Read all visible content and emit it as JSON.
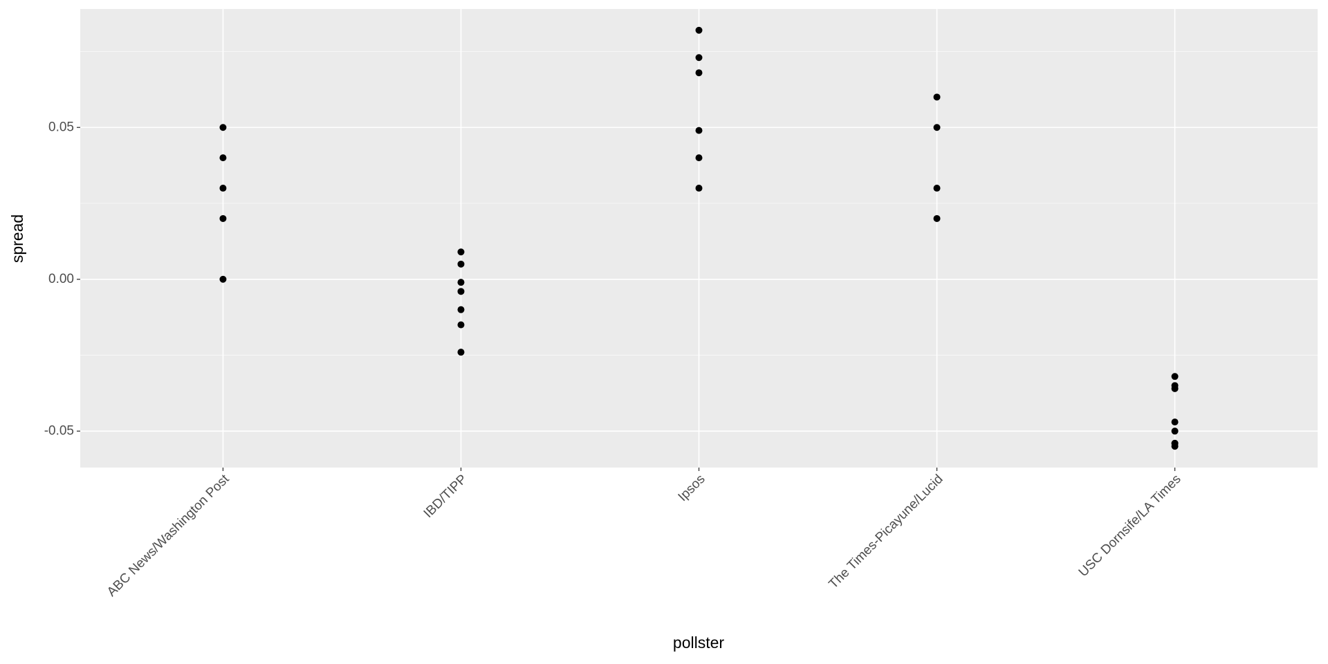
{
  "chart_data": {
    "type": "strip",
    "x_label": "pollster",
    "y_label": "spread",
    "groups": [
      {
        "name": "ABC News/Washington Post",
        "values": [
          0.05,
          0.04,
          0.03,
          0.02,
          0
        ]
      },
      {
        "name": "IBD/TIPP",
        "values": [
          0.009,
          0.005,
          -0.001,
          -0.004,
          -0.01,
          -0.015,
          -0.024
        ]
      },
      {
        "name": "Ipsos",
        "values": [
          0.082,
          0.073,
          0.068,
          0.049,
          0.04,
          0.03
        ]
      },
      {
        "name": "The Times-Picayune/Lucid",
        "values": [
          0.06,
          0.05,
          0.03,
          0.02
        ]
      },
      {
        "name": "USC Dornsife/LA Times",
        "values": [
          -0.032,
          -0.035,
          -0.036,
          -0.047,
          -0.05,
          -0.054,
          -0.054,
          -0.055
        ]
      }
    ],
    "color": "#000000",
    "ylim": [
      -0.062,
      0.089
    ],
    "yticks": [
      -0.05,
      {
        "value": 0,
        "label": "0.00"
      },
      0.05
    ],
    "yminor": [
      -0.025,
      0.025,
      0.075
    ],
    "grid": true
  }
}
